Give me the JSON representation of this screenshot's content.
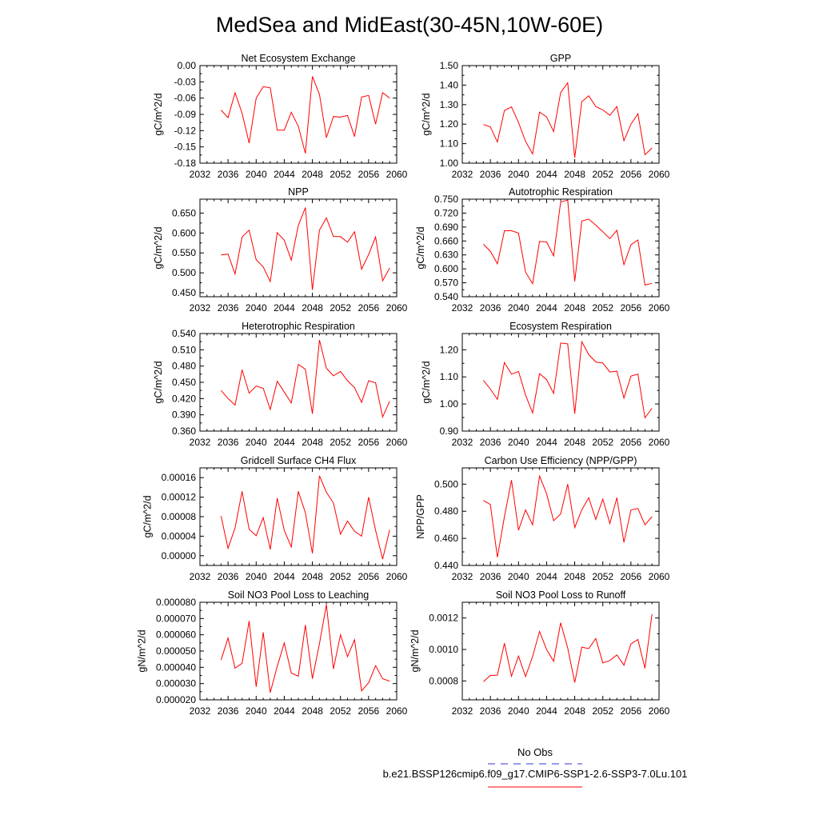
{
  "figure": {
    "title": "MedSea and MidEast(30-45N,10W-60E)"
  },
  "legend": {
    "obs_label": "No Obs",
    "obs_color": "#3333cc",
    "model_label": "b.e21.BSSP126cmip6.f09_g17.CMIP6-SSP1-2.6-SSP3-7.0Lu.101",
    "model_color": "#ff0000"
  },
  "x_ticks": [
    "2032",
    "2036",
    "2040",
    "2044",
    "2048",
    "2052",
    "2056",
    "2060"
  ],
  "chart_data": [
    {
      "type": "line",
      "title": "Net Ecosystem Exchange",
      "ylabel": "gC/m^2/d",
      "xlim": [
        2032,
        2060
      ],
      "ylim": [
        -0.18,
        0.0
      ],
      "yticks": [
        "0.00",
        "-0.03",
        "-0.06",
        "-0.09",
        "-0.12",
        "-0.15",
        "-0.18"
      ],
      "grid": false,
      "series": [
        {
          "color": "#ff0000",
          "x": [
            2035,
            2036,
            2037,
            2038,
            2039,
            2040,
            2041,
            2042,
            2043,
            2044,
            2045,
            2046,
            2047,
            2048,
            2049,
            2050,
            2051,
            2052,
            2053,
            2054,
            2055,
            2056,
            2057,
            2058,
            2059
          ],
          "y": [
            -0.082,
            -0.096,
            -0.05,
            -0.088,
            -0.143,
            -0.06,
            -0.039,
            -0.041,
            -0.119,
            -0.119,
            -0.086,
            -0.112,
            -0.162,
            -0.02,
            -0.053,
            -0.133,
            -0.094,
            -0.095,
            -0.092,
            -0.131,
            -0.058,
            -0.055,
            -0.108,
            -0.05,
            -0.06
          ]
        }
      ]
    },
    {
      "type": "line",
      "title": "GPP",
      "ylabel": "gC/m^2/d",
      "xlim": [
        2032,
        2060
      ],
      "ylim": [
        1.0,
        1.5
      ],
      "yticks": [
        "1.50",
        "1.40",
        "1.30",
        "1.20",
        "1.10",
        "1.00"
      ],
      "grid": false,
      "series": [
        {
          "color": "#ff0000",
          "x": [
            2035,
            2036,
            2037,
            2038,
            2039,
            2040,
            2041,
            2042,
            2043,
            2044,
            2045,
            2046,
            2047,
            2048,
            2049,
            2050,
            2051,
            2052,
            2053,
            2054,
            2055,
            2056,
            2057,
            2058,
            2059
          ],
          "y": [
            1.198,
            1.186,
            1.108,
            1.27,
            1.288,
            1.208,
            1.112,
            1.047,
            1.262,
            1.237,
            1.162,
            1.362,
            1.412,
            1.028,
            1.315,
            1.345,
            1.29,
            1.273,
            1.245,
            1.29,
            1.115,
            1.2,
            1.253,
            1.043,
            1.078
          ]
        }
      ]
    },
    {
      "type": "line",
      "title": "NPP",
      "ylabel": "gC/m^2/d",
      "xlim": [
        2032,
        2060
      ],
      "ylim": [
        0.44,
        0.685
      ],
      "yticks": [
        "0.650",
        "0.600",
        "0.550",
        "0.500",
        "0.450"
      ],
      "grid": false,
      "series": [
        {
          "color": "#ff0000",
          "x": [
            2035,
            2036,
            2037,
            2038,
            2039,
            2040,
            2041,
            2042,
            2043,
            2044,
            2045,
            2046,
            2047,
            2048,
            2049,
            2050,
            2051,
            2052,
            2053,
            2054,
            2055,
            2056,
            2057,
            2058,
            2059
          ],
          "y": [
            0.545,
            0.547,
            0.497,
            0.59,
            0.607,
            0.533,
            0.515,
            0.478,
            0.601,
            0.582,
            0.532,
            0.619,
            0.664,
            0.457,
            0.607,
            0.638,
            0.591,
            0.591,
            0.577,
            0.603,
            0.509,
            0.546,
            0.59,
            0.48,
            0.512
          ]
        }
      ]
    },
    {
      "type": "line",
      "title": "Autotrophic Respiration",
      "ylabel": "gC/m^2/d",
      "xlim": [
        2032,
        2060
      ],
      "ylim": [
        0.54,
        0.75
      ],
      "yticks": [
        "0.750",
        "0.720",
        "0.690",
        "0.660",
        "0.630",
        "0.600",
        "0.570",
        "0.540"
      ],
      "grid": false,
      "series": [
        {
          "color": "#ff0000",
          "x": [
            2035,
            2036,
            2037,
            2038,
            2039,
            2040,
            2041,
            2042,
            2043,
            2044,
            2045,
            2046,
            2047,
            2048,
            2049,
            2050,
            2051,
            2052,
            2053,
            2054,
            2055,
            2056,
            2057,
            2058,
            2059
          ],
          "y": [
            0.653,
            0.638,
            0.611,
            0.682,
            0.682,
            0.677,
            0.593,
            0.568,
            0.659,
            0.658,
            0.628,
            0.744,
            0.748,
            0.573,
            0.703,
            0.707,
            0.694,
            0.68,
            0.665,
            0.683,
            0.609,
            0.652,
            0.662,
            0.565,
            0.569
          ]
        }
      ]
    },
    {
      "type": "line",
      "title": "Heterotrophic Respiration",
      "ylabel": "gC/m^2/d",
      "xlim": [
        2032,
        2060
      ],
      "ylim": [
        0.36,
        0.54
      ],
      "yticks": [
        "0.540",
        "0.510",
        "0.480",
        "0.450",
        "0.420",
        "0.390",
        "0.360"
      ],
      "grid": false,
      "series": [
        {
          "color": "#ff0000",
          "x": [
            2035,
            2036,
            2037,
            2038,
            2039,
            2040,
            2041,
            2042,
            2043,
            2044,
            2045,
            2046,
            2047,
            2048,
            2049,
            2050,
            2051,
            2052,
            2053,
            2054,
            2055,
            2056,
            2057,
            2058,
            2059
          ],
          "y": [
            0.435,
            0.42,
            0.408,
            0.473,
            0.43,
            0.443,
            0.439,
            0.4,
            0.452,
            0.432,
            0.412,
            0.483,
            0.474,
            0.392,
            0.528,
            0.476,
            0.462,
            0.47,
            0.453,
            0.44,
            0.413,
            0.453,
            0.449,
            0.386,
            0.415
          ]
        }
      ]
    },
    {
      "type": "line",
      "title": "Ecosystem Respiration",
      "ylabel": "gC/m^2/d",
      "xlim": [
        2032,
        2060
      ],
      "ylim": [
        0.9,
        1.26
      ],
      "yticks": [
        "1.20",
        "1.10",
        "1.00",
        "0.90"
      ],
      "grid": false,
      "series": [
        {
          "color": "#ff0000",
          "x": [
            2035,
            2036,
            2037,
            2038,
            2039,
            2040,
            2041,
            2042,
            2043,
            2044,
            2045,
            2046,
            2047,
            2048,
            2049,
            2050,
            2051,
            2052,
            2053,
            2054,
            2055,
            2056,
            2057,
            2058,
            2059
          ],
          "y": [
            1.087,
            1.055,
            1.017,
            1.153,
            1.11,
            1.12,
            1.033,
            0.967,
            1.112,
            1.09,
            1.039,
            1.225,
            1.222,
            0.964,
            1.23,
            1.182,
            1.155,
            1.151,
            1.118,
            1.121,
            1.022,
            1.103,
            1.11,
            0.949,
            0.984
          ]
        }
      ]
    },
    {
      "type": "line",
      "title": "Gridcell Surface CH4 Flux",
      "ylabel": "gC/m^2/d",
      "xlim": [
        2032,
        2060
      ],
      "ylim": [
        -2e-05,
        0.00018
      ],
      "yticks": [
        "0.00016",
        "0.00012",
        "0.00008",
        "0.00004",
        "0.00000"
      ],
      "grid": false,
      "series": [
        {
          "color": "#ff0000",
          "x": [
            2035,
            2036,
            2037,
            2038,
            2039,
            2040,
            2041,
            2042,
            2043,
            2044,
            2045,
            2046,
            2047,
            2048,
            2049,
            2050,
            2051,
            2052,
            2053,
            2054,
            2055,
            2056,
            2057,
            2058,
            2059
          ],
          "y": [
            8.1e-05,
            1.5e-05,
            5.7e-05,
            0.000132,
            5.4e-05,
            4.1e-05,
            7.8e-05,
            1.3e-05,
            0.000118,
            5.2e-05,
            1.8e-05,
            0.000132,
            8.8e-05,
            5e-06,
            0.000164,
            0.00013,
            0.000108,
            4.4e-05,
            7.1e-05,
            5e-05,
            4e-05,
            0.00012,
            5.2e-05,
            -7e-06,
            5.3e-05
          ]
        }
      ]
    },
    {
      "type": "line",
      "title": "Carbon Use Efficiency (NPP/GPP)",
      "ylabel": "NPP/GPP",
      "xlim": [
        2032,
        2060
      ],
      "ylim": [
        0.44,
        0.512
      ],
      "yticks": [
        "0.500",
        "0.480",
        "0.460",
        "0.440"
      ],
      "grid": false,
      "series": [
        {
          "color": "#ff0000",
          "x": [
            2035,
            2036,
            2037,
            2038,
            2039,
            2040,
            2041,
            2042,
            2043,
            2044,
            2045,
            2046,
            2047,
            2048,
            2049,
            2050,
            2051,
            2052,
            2053,
            2054,
            2055,
            2056,
            2057,
            2058,
            2059
          ],
          "y": [
            0.488,
            0.485,
            0.446,
            0.476,
            0.503,
            0.466,
            0.481,
            0.47,
            0.506,
            0.493,
            0.473,
            0.478,
            0.5,
            0.468,
            0.481,
            0.49,
            0.474,
            0.489,
            0.471,
            0.49,
            0.457,
            0.481,
            0.482,
            0.47,
            0.476
          ]
        }
      ]
    },
    {
      "type": "line",
      "title": "Soil NO3 Pool Loss to Leaching",
      "ylabel": "gN/m^2/d",
      "xlim": [
        2032,
        2060
      ],
      "ylim": [
        2e-05,
        8e-05
      ],
      "yticks": [
        "0.000080",
        "0.000070",
        "0.000060",
        "0.000050",
        "0.000040",
        "0.000030",
        "0.000020"
      ],
      "grid": false,
      "series": [
        {
          "color": "#ff0000",
          "x": [
            2035,
            2036,
            2037,
            2038,
            2039,
            2040,
            2041,
            2042,
            2043,
            2044,
            2045,
            2046,
            2047,
            2048,
            2049,
            2050,
            2051,
            2052,
            2053,
            2054,
            2055,
            2056,
            2057,
            2058,
            2059
          ],
          "y": [
            4.45e-05,
            5.8e-05,
            3.95e-05,
            4.25e-05,
            6.85e-05,
            2.8e-05,
            6.15e-05,
            2.45e-05,
            4.05e-05,
            5.5e-05,
            3.65e-05,
            3.45e-05,
            6.6e-05,
            3.3e-05,
            5.45e-05,
            7.85e-05,
            3.9e-05,
            6e-05,
            4.65e-05,
            5.7e-05,
            2.55e-05,
            3.05e-05,
            4.1e-05,
            3.3e-05,
            3.15e-05
          ]
        }
      ]
    },
    {
      "type": "line",
      "title": "Soil NO3 Pool Loss to Runoff",
      "ylabel": "gN/m^2/d",
      "xlim": [
        2032,
        2060
      ],
      "ylim": [
        0.00068,
        0.0013
      ],
      "yticks": [
        "0.0012",
        "0.0010",
        "0.0008"
      ],
      "grid": false,
      "series": [
        {
          "color": "#ff0000",
          "x": [
            2035,
            2036,
            2037,
            2038,
            2039,
            2040,
            2041,
            2042,
            2043,
            2044,
            2045,
            2046,
            2047,
            2048,
            2049,
            2050,
            2051,
            2052,
            2053,
            2054,
            2055,
            2056,
            2057,
            2058,
            2059
          ],
          "y": [
            0.000795,
            0.000835,
            0.000837,
            0.00104,
            0.00083,
            0.000958,
            0.000828,
            0.000955,
            0.001115,
            0.001,
            0.000925,
            0.00117,
            0.00101,
            0.00079,
            0.001015,
            0.001005,
            0.00107,
            0.000915,
            0.00093,
            0.000965,
            0.0009,
            0.001035,
            0.001063,
            0.00088,
            0.001225
          ]
        }
      ]
    }
  ]
}
